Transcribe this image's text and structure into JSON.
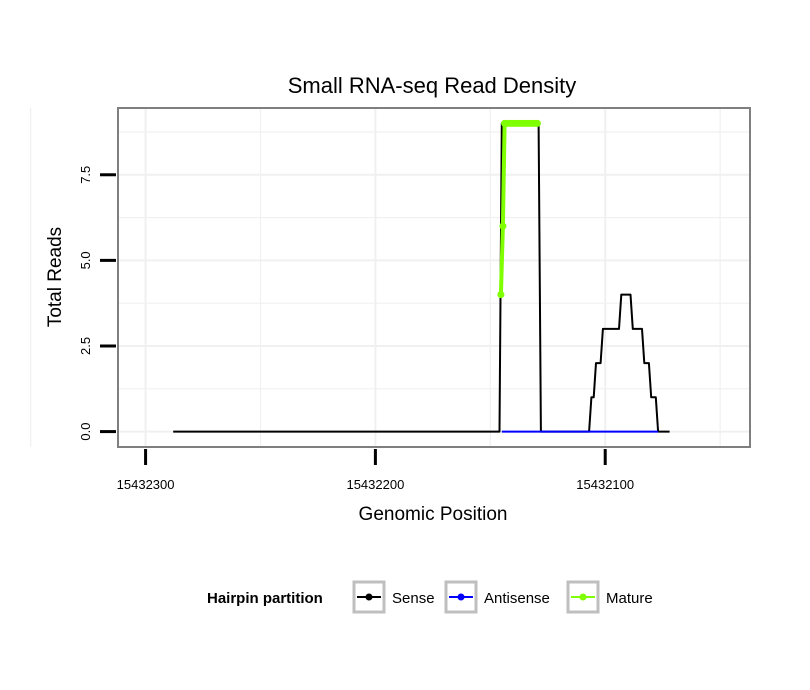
{
  "chart_data": {
    "type": "line",
    "title": "Small RNA-seq Read Density",
    "xlabel": "Genomic Position",
    "ylabel": "Total Reads",
    "x_reversed": true,
    "xlim": [
      15432312,
      15432037
    ],
    "ylim": [
      -0.45,
      9.45
    ],
    "x_ticks": [
      15432300,
      15432200,
      15432100
    ],
    "x_tick_labels": [
      "15432300",
      "15432200",
      "15432100"
    ],
    "y_ticks": [
      0,
      2.5,
      5,
      7.5
    ],
    "y_tick_labels": [
      "0.0",
      "2.5",
      "5.0",
      "7.5"
    ],
    "grid": true,
    "legend": {
      "title": "Hairpin partition",
      "position": "bottom",
      "entries": [
        {
          "name": "Sense",
          "color": "#000000"
        },
        {
          "name": "Antisense",
          "color": "#0000ff"
        },
        {
          "name": "Mature",
          "color": "#7fff00"
        }
      ]
    },
    "series": [
      {
        "name": "Sense",
        "color": "#000000",
        "x": [
          15432288,
          15432146,
          15432145,
          15432129,
          15432128,
          15432107,
          15432106,
          15432105,
          15432104,
          15432102,
          15432101,
          15432099,
          15432098,
          15432094,
          15432093,
          15432089,
          15432088,
          15432084,
          15432083,
          15432081,
          15432080,
          15432078,
          15432077,
          15432075,
          15432074,
          15432072
        ],
        "values": [
          0,
          0,
          9,
          9,
          0,
          0,
          1,
          1,
          2,
          2,
          3,
          3,
          3,
          3,
          4,
          4,
          3,
          3,
          2,
          2,
          1,
          1,
          0,
          0,
          0,
          0
        ]
      },
      {
        "name": "Antisense",
        "color": "#0000ff",
        "x": [
          15432145,
          15432128,
          15432105,
          15432077
        ],
        "values": [
          0,
          0,
          0,
          0
        ]
      },
      {
        "name": "Mature",
        "color": "#7fff00",
        "x": [
          15432145.4,
          15432144.5,
          15432143.8,
          15432143,
          15432142,
          15432141,
          15432140,
          15432139,
          15432138,
          15432137,
          15432136,
          15432135,
          15432134,
          15432133,
          15432132,
          15432131,
          15432130,
          15432129.5
        ],
        "values": [
          4,
          6,
          9,
          9,
          9,
          9,
          9,
          9,
          9,
          9,
          9,
          9,
          9,
          9,
          9,
          9,
          9,
          9
        ]
      }
    ]
  }
}
